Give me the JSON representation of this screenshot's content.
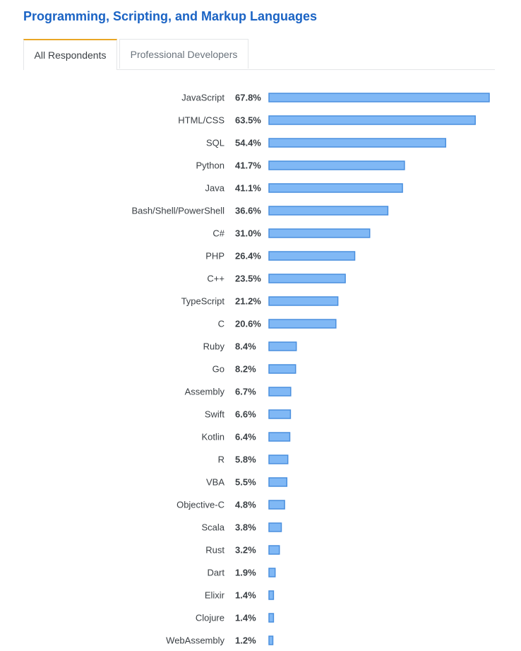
{
  "header": {
    "title": "Programming, Scripting, and Markup Languages"
  },
  "tabs": [
    {
      "label": "All Respondents",
      "active": true
    },
    {
      "label": "Professional Developers",
      "active": false
    }
  ],
  "colors": {
    "title": "#1a63c4",
    "bar_fill": "#80b8f5",
    "bar_stroke": "#4a8fde",
    "tab_accent": "#e9a626"
  },
  "chart_data": {
    "type": "bar",
    "orientation": "horizontal",
    "xlim": [
      0,
      67.8
    ],
    "categories": [
      "JavaScript",
      "HTML/CSS",
      "SQL",
      "Python",
      "Java",
      "Bash/Shell/PowerShell",
      "C#",
      "PHP",
      "C++",
      "TypeScript",
      "C",
      "Ruby",
      "Go",
      "Assembly",
      "Swift",
      "Kotlin",
      "R",
      "VBA",
      "Objective-C",
      "Scala",
      "Rust",
      "Dart",
      "Elixir",
      "Clojure",
      "WebAssembly"
    ],
    "values": [
      67.8,
      63.5,
      54.4,
      41.7,
      41.1,
      36.6,
      31.0,
      26.4,
      23.5,
      21.2,
      20.6,
      8.4,
      8.2,
      6.7,
      6.6,
      6.4,
      5.8,
      5.5,
      4.8,
      3.8,
      3.2,
      1.9,
      1.4,
      1.4,
      1.2
    ],
    "value_labels": [
      "67.8%",
      "63.5%",
      "54.4%",
      "41.7%",
      "41.1%",
      "36.6%",
      "31.0%",
      "26.4%",
      "23.5%",
      "21.2%",
      "20.6%",
      "8.4%",
      "8.2%",
      "6.7%",
      "6.6%",
      "6.4%",
      "5.8%",
      "5.5%",
      "4.8%",
      "3.8%",
      "3.2%",
      "1.9%",
      "1.4%",
      "1.4%",
      "1.2%"
    ]
  }
}
